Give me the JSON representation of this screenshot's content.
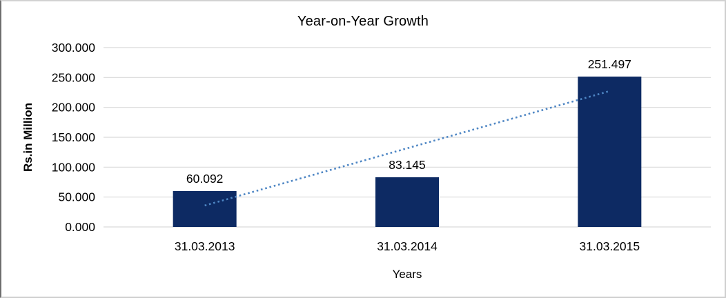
{
  "chart_data": {
    "type": "bar",
    "title": "Year-on-Year Growth",
    "xlabel": "Years",
    "ylabel": "Rs.in Million",
    "categories": [
      "31.03.2013",
      "31.03.2014",
      "31.03.2015"
    ],
    "values": [
      60.092,
      83.145,
      251.497
    ],
    "data_labels": [
      "60.092",
      "83.145",
      "251.497"
    ],
    "y_tick_labels": [
      "0.000",
      "50.000",
      "100.000",
      "150.000",
      "200.000",
      "250.000",
      "300.000"
    ],
    "ylim": [
      0,
      300
    ],
    "y_step": 50,
    "grid": true,
    "legend": "none",
    "bar_color": "#0d2a63",
    "trendline": {
      "type": "linear",
      "style": "dotted",
      "color": "#4e86c4"
    },
    "gridline_color": "#d9d9d9",
    "text_color": "#000000",
    "background_color": "#ffffff"
  }
}
